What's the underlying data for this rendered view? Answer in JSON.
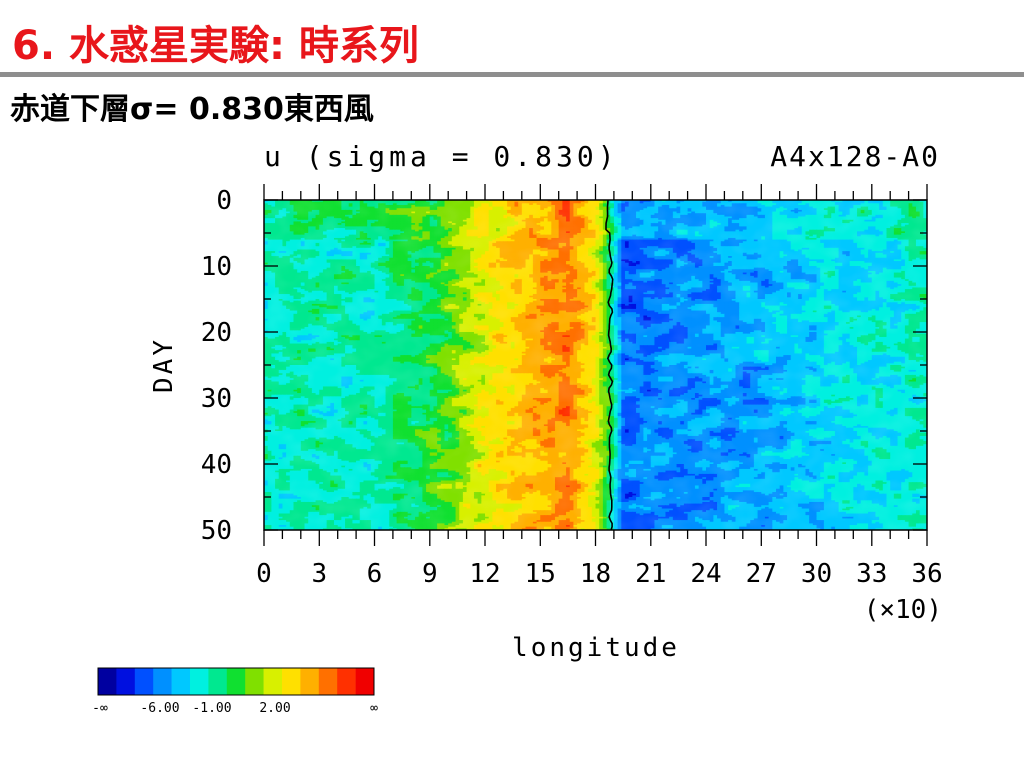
{
  "slide": {
    "title": "6. 水惑星実験: 時系列",
    "subtitle": "赤道下層σ= 0.830東西風"
  },
  "chart_data": {
    "type": "heatmap",
    "title": "u (sigma = 0.830)",
    "run_label": "A4x128-A0",
    "xlabel": "longitude",
    "x_multiplier": "(×10)",
    "ylabel": "DAY",
    "xlim": [
      0,
      360
    ],
    "ylim": [
      0,
      50
    ],
    "y_inverted": true,
    "xticks": [
      "0",
      "3",
      "6",
      "9",
      "12",
      "15",
      "18",
      "21",
      "24",
      "27",
      "30",
      "33",
      "36"
    ],
    "yticks": [
      "0",
      "10",
      "20",
      "30",
      "40",
      "50"
    ],
    "zonal_mean_profile": [
      {
        "lon": 0,
        "u": -1.0
      },
      {
        "lon": 30,
        "u": -1.0
      },
      {
        "lon": 60,
        "u": -1.0
      },
      {
        "lon": 80,
        "u": 0.0
      },
      {
        "lon": 100,
        "u": 1.0
      },
      {
        "lon": 115,
        "u": 2.5
      },
      {
        "lon": 130,
        "u": 3.5
      },
      {
        "lon": 150,
        "u": 4.5
      },
      {
        "lon": 165,
        "u": 5.5
      },
      {
        "lon": 180,
        "u": 3.0
      },
      {
        "lon": 188,
        "u": 0.0
      },
      {
        "lon": 195,
        "u": -4.0
      },
      {
        "lon": 230,
        "u": -3.5
      },
      {
        "lon": 270,
        "u": -3.0
      },
      {
        "lon": 310,
        "u": -2.0
      },
      {
        "lon": 340,
        "u": -1.5
      },
      {
        "lon": 360,
        "u": -1.0
      }
    ],
    "zero_contour_lon": 188,
    "colorbar": {
      "colors": [
        "#0000a0",
        "#0010e0",
        "#0050ff",
        "#0090ff",
        "#00c8ff",
        "#00f0e0",
        "#00e890",
        "#10e030",
        "#80e000",
        "#d8f000",
        "#ffe000",
        "#ffb000",
        "#ff7000",
        "#ff3000",
        "#f00000"
      ],
      "labels": [
        "-∞",
        "-6.00",
        "-1.00",
        "2.00",
        "∞"
      ]
    }
  }
}
